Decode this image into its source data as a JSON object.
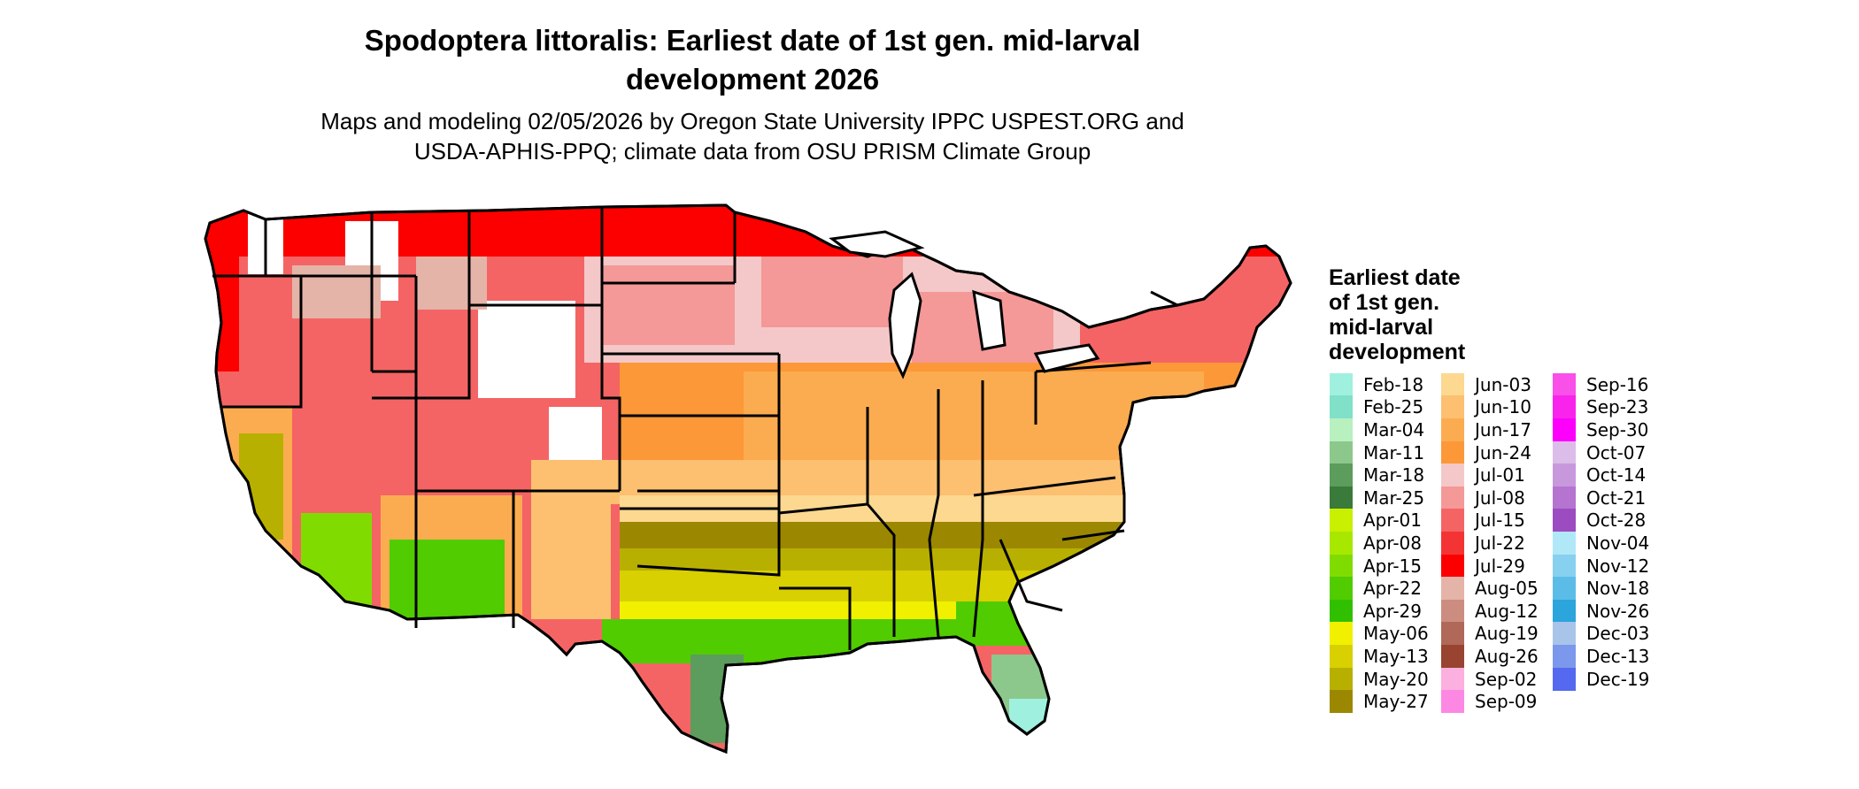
{
  "title_line1": "Spodoptera littoralis: Earliest date of 1st gen. mid-larval",
  "title_line2": "development 2026",
  "subtitle_line1": "Maps and modeling 02/05/2026 by Oregon State University IPPC USPEST.ORG and",
  "subtitle_line2": "USDA-APHIS-PPQ; climate data from OSU PRISM Climate Group",
  "legend": {
    "title_lines": [
      "Earliest date",
      "of 1st gen.",
      "mid-larval",
      "development"
    ],
    "columns": [
      [
        {
          "label": "Feb-18",
          "color": "#a0f0e0"
        },
        {
          "label": "Feb-25",
          "color": "#80e0c8"
        },
        {
          "label": "Mar-04",
          "color": "#b8f0c0"
        },
        {
          "label": "Mar-11",
          "color": "#8cc88c"
        },
        {
          "label": "Mar-18",
          "color": "#5c9c5c"
        },
        {
          "label": "Mar-25",
          "color": "#3a7a3a"
        },
        {
          "label": "Apr-01",
          "color": "#c8f000"
        },
        {
          "label": "Apr-08",
          "color": "#a8e800"
        },
        {
          "label": "Apr-15",
          "color": "#80dc00"
        },
        {
          "label": "Apr-22",
          "color": "#50cc00"
        },
        {
          "label": "Apr-29",
          "color": "#30c000"
        },
        {
          "label": "May-06",
          "color": "#f0f000"
        },
        {
          "label": "May-13",
          "color": "#d8d000"
        },
        {
          "label": "May-20",
          "color": "#b8b000"
        },
        {
          "label": "May-27",
          "color": "#9c8800"
        }
      ],
      [
        {
          "label": "Jun-03",
          "color": "#fcd890"
        },
        {
          "label": "Jun-10",
          "color": "#fcc070"
        },
        {
          "label": "Jun-17",
          "color": "#fcac50"
        },
        {
          "label": "Jun-24",
          "color": "#fc9838"
        },
        {
          "label": "Jul-01",
          "color": "#f4c8c8"
        },
        {
          "label": "Jul-08",
          "color": "#f49898"
        },
        {
          "label": "Jul-15",
          "color": "#f46464"
        },
        {
          "label": "Jul-22",
          "color": "#f43434"
        },
        {
          "label": "Jul-29",
          "color": "#fc0000"
        },
        {
          "label": "Aug-05",
          "color": "#e4b4a8"
        },
        {
          "label": "Aug-12",
          "color": "#cc8c80"
        },
        {
          "label": "Aug-19",
          "color": "#b06858"
        },
        {
          "label": "Aug-26",
          "color": "#984430"
        },
        {
          "label": "Sep-02",
          "color": "#fcb0e0"
        },
        {
          "label": "Sep-09",
          "color": "#fc88e4"
        }
      ],
      [
        {
          "label": "Sep-16",
          "color": "#f850e8"
        },
        {
          "label": "Sep-23",
          "color": "#f824ec"
        },
        {
          "label": "Sep-30",
          "color": "#fc00fc"
        },
        {
          "label": "Oct-07",
          "color": "#dcbce8"
        },
        {
          "label": "Oct-14",
          "color": "#c898dc"
        },
        {
          "label": "Oct-21",
          "color": "#b474d0"
        },
        {
          "label": "Oct-28",
          "color": "#9c4cc0"
        },
        {
          "label": "Nov-04",
          "color": "#b0e8f8"
        },
        {
          "label": "Nov-12",
          "color": "#88d0f0"
        },
        {
          "label": "Nov-18",
          "color": "#5cbce8"
        },
        {
          "label": "Nov-26",
          "color": "#2ca4dc"
        },
        {
          "label": "Dec-03",
          "color": "#a8c4e8"
        },
        {
          "label": "Dec-13",
          "color": "#7c98ec"
        },
        {
          "label": "Dec-19",
          "color": "#5468f0"
        }
      ]
    ]
  }
}
